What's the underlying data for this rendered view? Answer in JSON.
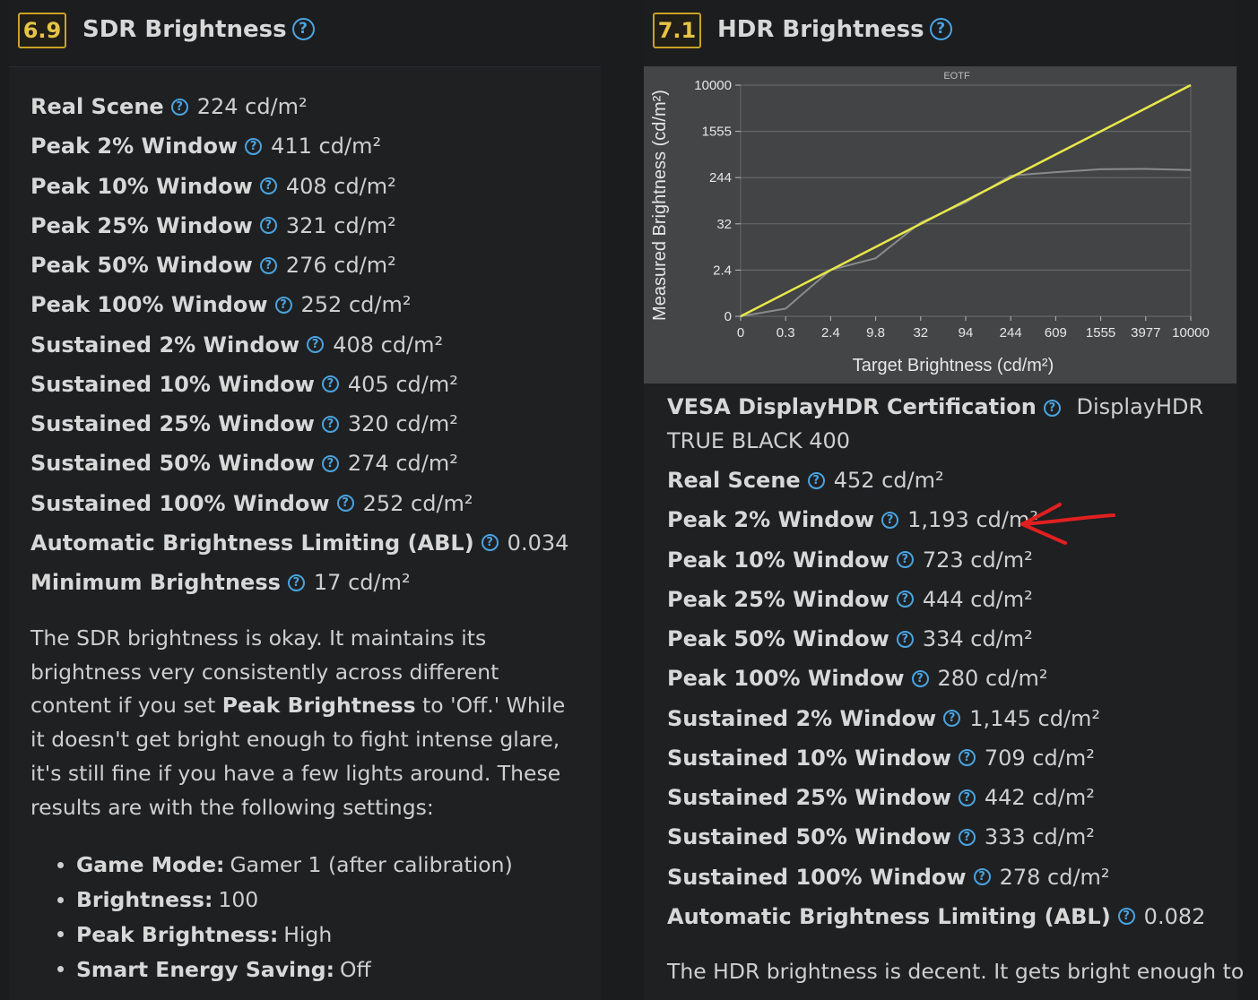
{
  "sdr": {
    "score": "6.9",
    "title": "SDR Brightness",
    "metrics": [
      {
        "label": "Real Scene",
        "value": "224 cd/m²"
      },
      {
        "label": "Peak 2% Window",
        "value": "411 cd/m²"
      },
      {
        "label": "Peak 10% Window",
        "value": "408 cd/m²"
      },
      {
        "label": "Peak 25% Window",
        "value": "321 cd/m²"
      },
      {
        "label": "Peak 50% Window",
        "value": "276 cd/m²"
      },
      {
        "label": "Peak 100% Window",
        "value": "252 cd/m²"
      },
      {
        "label": "Sustained 2% Window",
        "value": "408 cd/m²"
      },
      {
        "label": "Sustained 10% Window",
        "value": "405 cd/m²"
      },
      {
        "label": "Sustained 25% Window",
        "value": "320 cd/m²"
      },
      {
        "label": "Sustained 50% Window",
        "value": "274 cd/m²"
      },
      {
        "label": "Sustained 100% Window",
        "value": "252 cd/m²"
      },
      {
        "label": "Automatic Brightness Limiting (ABL)",
        "value": "0.034"
      },
      {
        "label": "Minimum Brightness",
        "value": "17 cd/m²"
      }
    ],
    "description": {
      "part1": "The SDR brightness is okay. It maintains its brightness very consistently across different content if you set ",
      "bold": "Peak Brightness",
      "part2": " to 'Off.' While it doesn't get bright enough to fight intense glare, it's still fine if you have a few lights around. These results are with the following settings:"
    },
    "settings": [
      {
        "label": "Game Mode:",
        "value": "Gamer 1 (after calibration)"
      },
      {
        "label": "Brightness:",
        "value": "100"
      },
      {
        "label": "Peak Brightness:",
        "value": "High"
      },
      {
        "label": "Smart Energy Saving:",
        "value": "Off"
      }
    ]
  },
  "hdr": {
    "score": "7.1",
    "title": "HDR Brightness",
    "certification": {
      "label": "VESA DisplayHDR Certification",
      "value": "DisplayHDR TRUE BLACK 400"
    },
    "metrics": [
      {
        "label": "Real Scene",
        "value": "452 cd/m²"
      },
      {
        "label": "Peak 2% Window",
        "value": "1,193 cd/m²"
      },
      {
        "label": "Peak 10% Window",
        "value": "723 cd/m²"
      },
      {
        "label": "Peak 25% Window",
        "value": "444 cd/m²"
      },
      {
        "label": "Peak 50% Window",
        "value": "334 cd/m²"
      },
      {
        "label": "Peak 100% Window",
        "value": "280 cd/m²"
      },
      {
        "label": "Sustained 2% Window",
        "value": "1,145 cd/m²"
      },
      {
        "label": "Sustained 10% Window",
        "value": "709 cd/m²"
      },
      {
        "label": "Sustained 25% Window",
        "value": "442 cd/m²"
      },
      {
        "label": "Sustained 50% Window",
        "value": "333 cd/m²"
      },
      {
        "label": "Sustained 100% Window",
        "value": "278 cd/m²"
      },
      {
        "label": "Automatic Brightness Limiting (ABL)",
        "value": "0.082"
      }
    ],
    "description": "The HDR brightness is decent. It gets bright enough to"
  },
  "chart_data": {
    "type": "line",
    "title": "EOTF",
    "xlabel": "Target Brightness (cd/m²)",
    "ylabel": "Measured Brightness (cd/m²)",
    "x_ticks": [
      "0",
      "0.3",
      "2.4",
      "9.8",
      "32",
      "94",
      "244",
      "609",
      "1555",
      "3977",
      "10000"
    ],
    "y_ticks": [
      "0",
      "2.4",
      "32",
      "244",
      "1555",
      "10000"
    ],
    "scale": "PQ (non-linear)",
    "grid": "horizontal",
    "series": [
      {
        "color": "#e8e84a",
        "x": [
          0,
          10000
        ],
        "y": [
          0,
          10000
        ]
      },
      {
        "color": "#8a8a8a",
        "x": [
          0,
          0.3,
          2.4,
          9.8,
          32,
          94,
          244,
          609,
          1555,
          3977,
          10000
        ],
        "y": [
          0,
          0.4,
          2.6,
          10,
          38,
          130,
          300,
          400,
          480,
          490,
          460
        ]
      }
    ]
  },
  "colors": {
    "accent": "#4aa3df",
    "badge": "#c9a227",
    "annotation": "#e02020"
  }
}
